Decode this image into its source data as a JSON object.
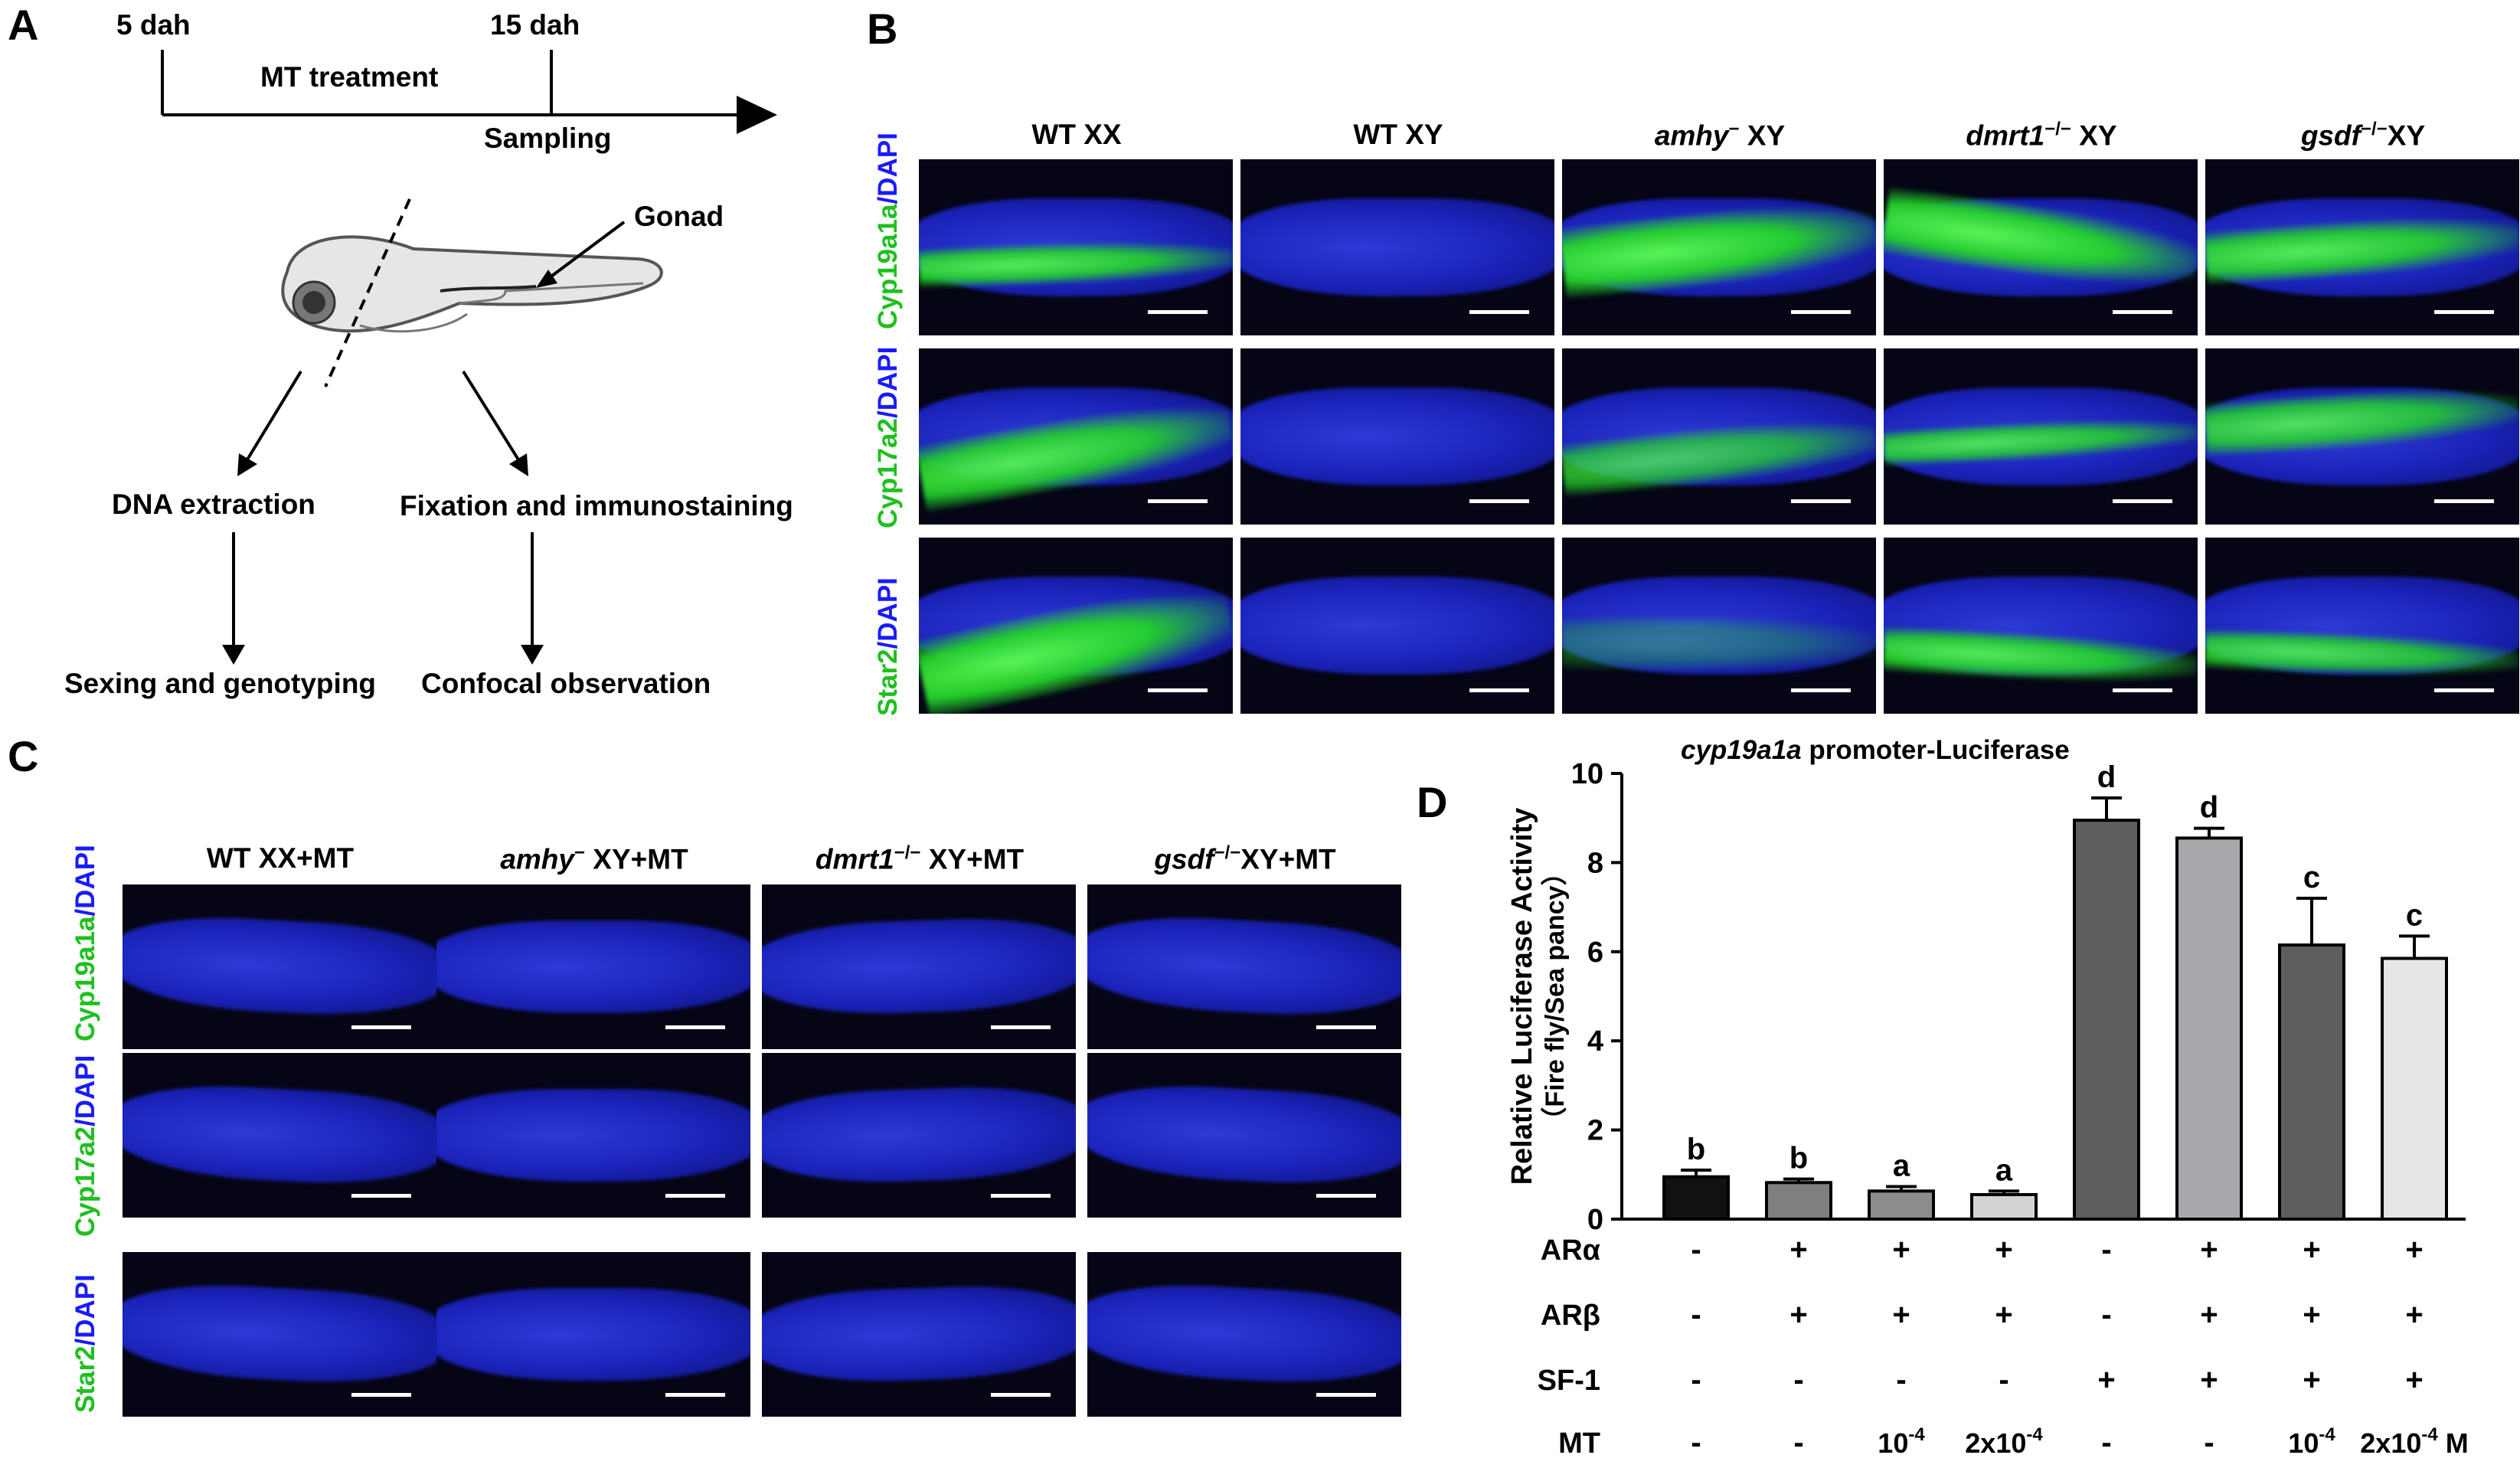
{
  "panels": {
    "a": "A",
    "b": "B",
    "c": "C",
    "d": "D"
  },
  "panel_a": {
    "t0": "5 dah",
    "t1": "15 dah",
    "treatment": "MT treatment",
    "sampling": "Sampling",
    "gonad": "Gonad",
    "dna": "DNA extraction",
    "fix": "Fixation and immunostaining",
    "sexing": "Sexing and genotyping",
    "confocal": "Confocal observation"
  },
  "panel_b": {
    "columns": [
      {
        "gene": "WT XX",
        "sup": "",
        "suffix": ""
      },
      {
        "gene": "WT XY",
        "sup": "",
        "suffix": ""
      },
      {
        "gene": "amhy",
        "sup": "−",
        "suffix": " XY"
      },
      {
        "gene": "dmrt1",
        "sup": "−/−",
        "suffix": " XY"
      },
      {
        "gene": "gsdf",
        "sup": "−/−",
        "suffix": "XY"
      }
    ],
    "rows": [
      {
        "green": "Cyp19a1a",
        "blue": "/DAPI"
      },
      {
        "green": "Cyp17a2",
        "blue": "/DAPI"
      },
      {
        "green": "Star2",
        "blue": "/DAPI"
      }
    ]
  },
  "panel_c": {
    "columns": [
      {
        "gene": "WT XX+MT",
        "sup": "",
        "suffix": ""
      },
      {
        "gene": "amhy",
        "sup": "−",
        "suffix": " XY+MT"
      },
      {
        "gene": "dmrt1",
        "sup": "−/−",
        "suffix": " XY+MT"
      },
      {
        "gene": "gsdf",
        "sup": "−/−",
        "suffix": "XY+MT"
      }
    ],
    "rows": [
      {
        "green": "Cyp19a1a",
        "blue": "/DAPI"
      },
      {
        "green": "Cyp17a2",
        "blue": "/DAPI"
      },
      {
        "green": "Star2",
        "blue": "/DAPI"
      }
    ]
  },
  "chart_data": {
    "type": "bar",
    "title_italic": "cyp19a1a",
    "title_rest": " promoter-Luciferase",
    "ylabel": "Relative Luciferase Activity",
    "ylabel2": "（Fire fly/Sea pancy）",
    "ylim": [
      0,
      10
    ],
    "yticks": [
      "0",
      "2",
      "4",
      "6",
      "8",
      "10"
    ],
    "values": [
      0.95,
      0.82,
      0.63,
      0.55,
      8.95,
      8.55,
      6.15,
      5.85
    ],
    "errors": [
      0.15,
      0.08,
      0.1,
      0.08,
      0.5,
      0.22,
      1.05,
      0.5
    ],
    "letters": [
      "b",
      "b",
      "a",
      "a",
      "d",
      "d",
      "c",
      "c"
    ],
    "colors": [
      "#111111",
      "#7f7f7f",
      "#8c8c8c",
      "#d3d3d3",
      "#5e5e5e",
      "#a8a8ad",
      "#5e5e5e",
      "#e6e6e6"
    ],
    "conditions": [
      {
        "name": "ARα",
        "marks": [
          "-",
          "+",
          "+",
          "+",
          "-",
          "+",
          "+",
          "+"
        ]
      },
      {
        "name": "ARβ",
        "marks": [
          "-",
          "+",
          "+",
          "+",
          "-",
          "+",
          "+",
          "+"
        ]
      },
      {
        "name": "SF-1",
        "marks": [
          "-",
          "-",
          "-",
          "-",
          "+",
          "+",
          "+",
          "+"
        ]
      },
      {
        "name": "MT",
        "marks": [
          "-",
          "-",
          "10-4",
          "2x10-4",
          "-",
          "-",
          "10-4",
          "2x10-4 M"
        ]
      }
    ]
  }
}
